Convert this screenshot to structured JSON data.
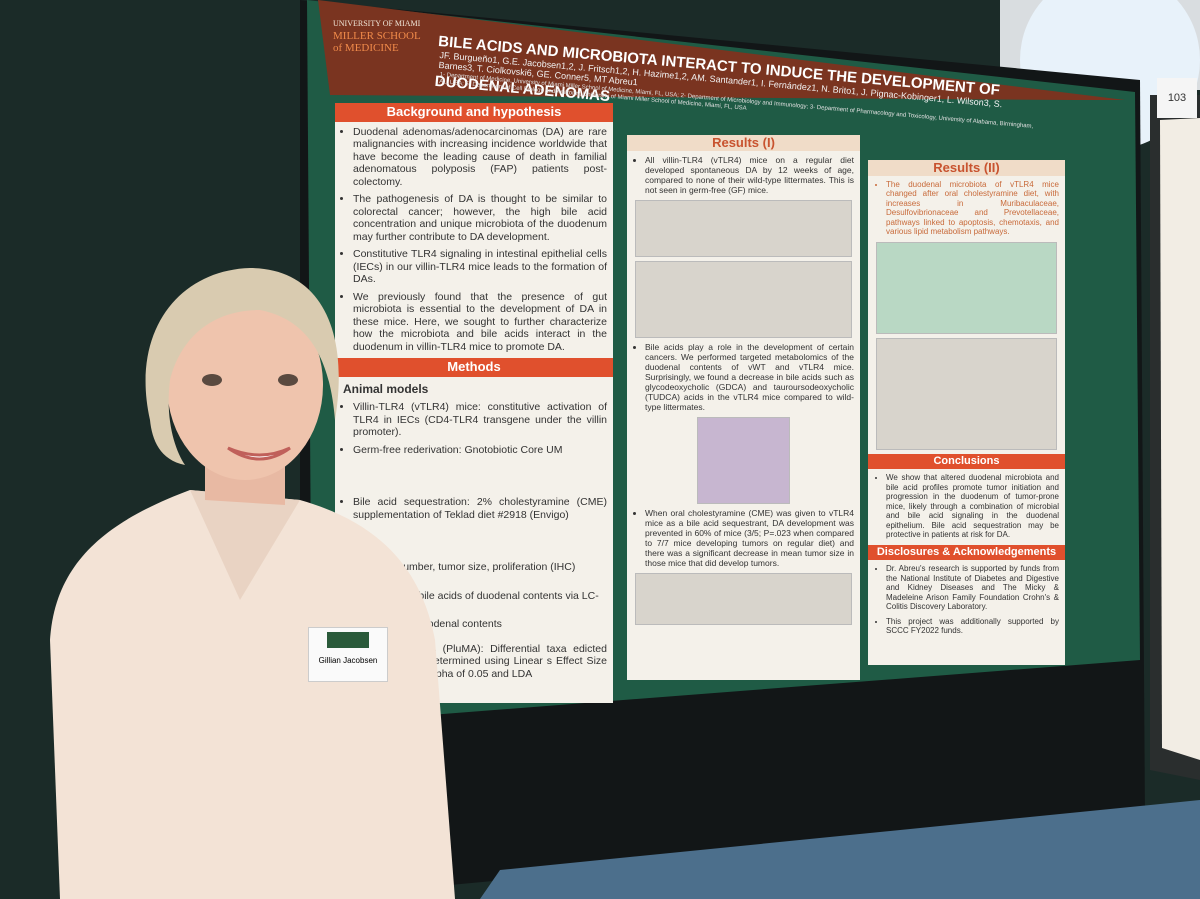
{
  "poster": {
    "institution": [
      "UNIVERSITY OF MIAMI",
      "MILLER SCHOOL",
      "of MEDICINE"
    ],
    "title": "BILE ACIDS AND MICROBIOTA INTERACT TO INDUCE THE DEVELOPMENT OF DUODENAL ADENOMAS",
    "authors": "JF. Burgueño1, G.E. Jacobsen1,2, J. Fritsch1,2, H. Hazime1,2, AM. Santander1, I. Fernández1, N. Brito1, J. Pignac-Kobinger1, L. Wilson3, S. Barnes3, T. Ciolkovski6, GE. Conner5, MT Abreu1",
    "affiliations": "1- Department of Medicine, University of Miami Miller School of Medicine, Miami, FL, USA; 2- Department of Microbiology and Immunology; 3- Department of Pharmacology and Toxicology, University of Alabama, Birmingham, AL, USA; 5- Department of Cell Biology and Anatomy, University of Miami Miller School of Medicine, Miami, FL, USA",
    "background": {
      "heading": "Background and hypothesis",
      "items": [
        "Duodenal adenomas/adenocarcinomas (DA) are rare malignancies with increasing incidence worldwide that have become the leading cause of death in familial adenomatous polyposis (FAP) patients post-colectomy.",
        "The pathogenesis of DA is thought to be similar to colorectal cancer; however, the high bile acid concentration and unique microbiota of the duodenum may further contribute to DA development.",
        "Constitutive TLR4 signaling in intestinal epithelial cells (IECs) in our villin-TLR4 mice leads to the formation of DAs.",
        "We previously found that the presence of gut microbiota is essential to the development of DA in these mice. Here, we sought to further characterize how the microbiota and bile acids interact in the duodenum in villin-TLR4 mice to promote DA."
      ]
    },
    "methods": {
      "heading": "Methods",
      "subheading": "Animal models",
      "items": [
        "Villin-TLR4 (vTLR4) mice: constitutive activation of TLR4 in IECs (CD4-TLR4 transgene under the villin promoter).",
        "Germ-free rederivation: Gnotobiotic Core UM",
        "Bile acid sequestration: 2% cholestyramine (CME) supplementation of Teklad diet #2918 (Envigo)",
        "nt: tumor number, tumor size, proliferation (IHC)",
        "abolomics for bile acids of duodenal contents via LC-",
        "equencing of duodenal contents",
        "robiome Analysis (PluMA): Differential taxa edicted pathways were determined using Linear s Effect Size (LEfSe) with an alpha of 0.05 and LDA"
      ]
    },
    "results1": {
      "heading": "Results (I)",
      "items": [
        "All villin-TLR4 (vTLR4) mice on a regular diet developed spontaneous DA by 12 weeks of age, compared to none of their wild-type littermates. This is not seen in germ-free (GF) mice.",
        "Bile acids play a role in the development of certain cancers. We performed targeted metabolomics of the duodenal contents of vWT and vTLR4 mice. Surprisingly, we found a decrease in bile acids such as glycodeoxycholic (GDCA) and tauroursodeoxycholic (TUDCA) acids in the vTLR4 mice compared to wild-type littermates.",
        "When oral cholestyramine (CME) was given to vTLR4 mice as a bile acid sequestrant, DA development was prevented in 60% of mice (3/5; P=.023 when compared to 7/7 mice developing tumors on regular diet) and there was a significant decrease in mean tumor size in those mice that did develop tumors."
      ]
    },
    "results2": {
      "heading": "Results (II)",
      "items": [
        "The duodenal microbiota of vTLR4 mice changed after oral cholestyramine diet, with increases in Muribaculaceae, Desulfovibrionaceae and Prevotellaceae, pathways linked to apoptosis, chemotaxis, and various lipid metabolism pathways."
      ]
    },
    "conclusions": {
      "heading": "Conclusions",
      "items": [
        "We show that altered duodenal microbiota and bile acid profiles promote tumor initiation and progression in the duodenum of tumor-prone mice, likely through a combination of microbial and bile acid signaling in the duodenal epithelium. Bile acid sequestration may be protective in patients at risk for DA."
      ]
    },
    "disclosures": {
      "heading": "Disclosures & Acknowledgements",
      "items": [
        "Dr. Abreu's research is supported by funds from the National Institute of Diabetes and Digestive and Kidney Diseases and The Micky & Madeleine Arison Family Foundation Crohn's & Colitis Discovery Laboratory.",
        "This project was additionally supported by SCCC FY2022 funds."
      ]
    }
  },
  "badge": "Gillian Jacobsen",
  "board_number": "103"
}
